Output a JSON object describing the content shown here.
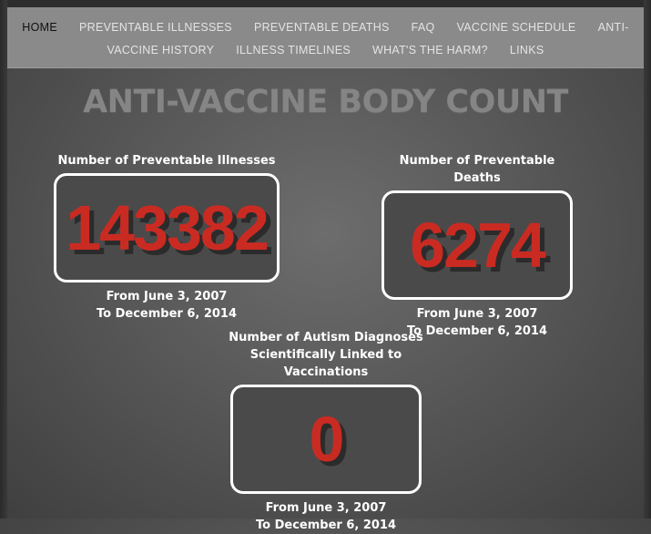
{
  "nav": {
    "row1": [
      {
        "label": "HOME",
        "active": true
      },
      {
        "label": "PREVENTABLE ILLNESSES"
      },
      {
        "label": "PREVENTABLE DEATHS"
      },
      {
        "label": "FAQ"
      },
      {
        "label": "VACCINE SCHEDULE"
      },
      {
        "label": "ANTI-"
      }
    ],
    "row2": [
      {
        "label": "VACCINE HISTORY"
      },
      {
        "label": "ILLNESS TIMELINES"
      },
      {
        "label": "WHAT'S THE HARM?"
      },
      {
        "label": "LINKS"
      }
    ]
  },
  "title": "ANTI-VACCINE BODY COUNT",
  "counters": [
    {
      "label": "Number of Preventable Illnesses",
      "value": "143382",
      "range_from": "From June 3, 2007",
      "range_to": "To December 6, 2014"
    },
    {
      "label": "Number of Preventable Deaths",
      "value": "6274",
      "range_from": "From June 3, 2007",
      "range_to": "To December 6, 2014"
    },
    {
      "label_line1": "Number of Autism Diagnoses",
      "label_line2": "Scientifically Linked to Vaccinations",
      "value": "0",
      "range_from": "From June 3, 2007",
      "range_to": "To December 6, 2014"
    }
  ],
  "colors": {
    "nav_bg": "#8a8a8a",
    "counter_digit": "#c92b22",
    "counter_border": "#ffffff"
  }
}
